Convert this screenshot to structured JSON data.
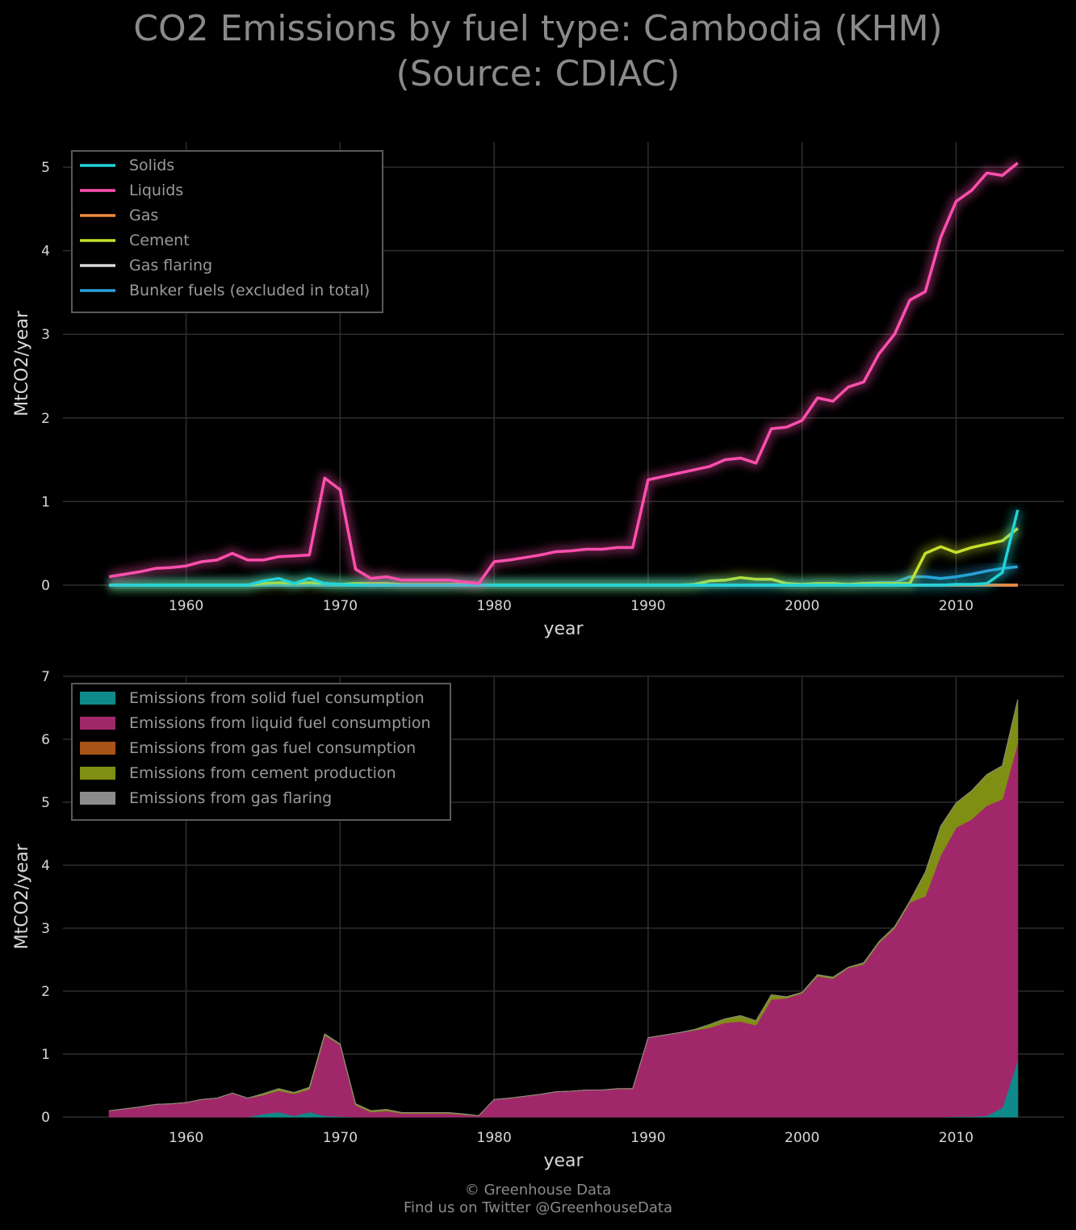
{
  "title": {
    "line1": "CO2 Emissions by fuel type: Cambodia (KHM)",
    "line2": "(Source: CDIAC)"
  },
  "footer": {
    "line1": "© Greenhouse Data",
    "line2": "Find us on Twitter @GreenhouseData"
  },
  "colors": {
    "background": "#000000",
    "solids": "#22d3d9",
    "liquids": "#ff4fae",
    "gas": "#f28a3c",
    "cement": "#c6e02a",
    "gas_flaring": "#d9d9d9",
    "bunker": "#2a9fd6",
    "area_solid": "#0f8a8a",
    "area_liquid": "#a0286a",
    "area_gas": "#a85418",
    "area_cement": "#7f8f14",
    "area_flaring": "#8c8c8c",
    "grid": "#2e2e2e"
  },
  "chart_data": [
    {
      "type": "line",
      "xlabel": "year",
      "ylabel": "MtCO2/year",
      "xlim": [
        1952,
        2017
      ],
      "ylim": [
        0,
        5.3
      ],
      "xticks": [
        1960,
        1970,
        1980,
        1990,
        2000,
        2010
      ],
      "yticks": [
        0,
        1,
        2,
        3,
        4,
        5
      ],
      "grid": true,
      "legend_position": "top-left",
      "x": [
        1955,
        1956,
        1957,
        1958,
        1959,
        1960,
        1961,
        1962,
        1963,
        1964,
        1965,
        1966,
        1967,
        1968,
        1969,
        1970,
        1971,
        1972,
        1973,
        1974,
        1975,
        1976,
        1977,
        1978,
        1979,
        1980,
        1981,
        1982,
        1983,
        1984,
        1985,
        1986,
        1987,
        1988,
        1989,
        1990,
        1991,
        1992,
        1993,
        1994,
        1995,
        1996,
        1997,
        1998,
        1999,
        2000,
        2001,
        2002,
        2003,
        2004,
        2005,
        2006,
        2007,
        2008,
        2009,
        2010,
        2011,
        2012,
        2013,
        2014
      ],
      "series": [
        {
          "name": "Solids",
          "key": "solids",
          "values": [
            0,
            0,
            0,
            0,
            0,
            0,
            0,
            0,
            0,
            0,
            0.05,
            0.08,
            0.02,
            0.08,
            0.02,
            0.01,
            0,
            0,
            0,
            0,
            0,
            0,
            0,
            0,
            0,
            0,
            0,
            0,
            0,
            0,
            0,
            0,
            0,
            0,
            0,
            0,
            0,
            0,
            0,
            0,
            0,
            0,
            0,
            0,
            0,
            0,
            0,
            0,
            0,
            0,
            0,
            0,
            0,
            0,
            0,
            0.01,
            0.01,
            0.02,
            0.15,
            0.9
          ]
        },
        {
          "name": "Liquids",
          "key": "liquids",
          "values": [
            0.1,
            0.13,
            0.16,
            0.2,
            0.21,
            0.23,
            0.28,
            0.3,
            0.38,
            0.3,
            0.3,
            0.34,
            0.35,
            0.36,
            1.28,
            1.14,
            0.19,
            0.08,
            0.1,
            0.06,
            0.06,
            0.06,
            0.06,
            0.04,
            0.02,
            0.28,
            0.3,
            0.33,
            0.36,
            0.4,
            0.41,
            0.43,
            0.43,
            0.45,
            0.45,
            1.26,
            1.3,
            1.34,
            1.38,
            1.42,
            1.5,
            1.52,
            1.46,
            1.87,
            1.89,
            1.97,
            2.24,
            2.2,
            2.37,
            2.43,
            2.77,
            3.0,
            3.41,
            3.51,
            4.16,
            4.59,
            4.72,
            4.93,
            4.9,
            5.05
          ]
        },
        {
          "name": "Gas",
          "key": "gas",
          "values": [
            0,
            0,
            0,
            0,
            0,
            0,
            0,
            0,
            0,
            0,
            0,
            0,
            0,
            0,
            0,
            0,
            0,
            0,
            0,
            0,
            0,
            0,
            0,
            0,
            0,
            0,
            0,
            0,
            0,
            0,
            0,
            0,
            0,
            0,
            0,
            0,
            0,
            0,
            0,
            0,
            0,
            0,
            0,
            0,
            0,
            0,
            0,
            0,
            0,
            0,
            0,
            0,
            0,
            0,
            0,
            0,
            0,
            0,
            0,
            0
          ]
        },
        {
          "name": "Cement",
          "key": "cement",
          "values": [
            0,
            0,
            0,
            0,
            0,
            0,
            0,
            0,
            0,
            0,
            0.02,
            0.03,
            0.02,
            0.03,
            0.02,
            0.01,
            0.02,
            0.02,
            0.02,
            0.01,
            0.01,
            0.01,
            0.01,
            0.01,
            0,
            0,
            0,
            0,
            0,
            0,
            0,
            0,
            0,
            0,
            0,
            0,
            0,
            0,
            0.01,
            0.05,
            0.06,
            0.09,
            0.07,
            0.07,
            0.02,
            0.01,
            0.02,
            0.02,
            0.01,
            0.02,
            0.02,
            0.02,
            0.02,
            0.38,
            0.46,
            0.39,
            0.45,
            0.49,
            0.53,
            0.68
          ]
        },
        {
          "name": "Gas flaring",
          "key": "gas_flaring",
          "values": [
            0,
            0,
            0,
            0,
            0,
            0,
            0,
            0,
            0,
            0,
            0,
            0,
            0,
            0,
            0,
            0,
            0,
            0,
            0,
            0,
            0,
            0,
            0,
            0,
            0,
            0,
            0,
            0,
            0,
            0,
            0,
            0,
            0,
            0,
            0,
            0,
            0,
            0,
            0,
            0,
            0,
            0,
            0,
            0,
            0,
            0,
            0,
            0,
            0,
            0,
            0,
            0,
            0,
            0,
            0,
            0,
            0,
            0,
            0,
            0
          ]
        },
        {
          "name": "Bunker fuels (excluded in total)",
          "key": "bunker",
          "values": [
            0,
            0,
            0,
            0,
            0,
            0,
            0,
            0,
            0,
            0,
            0,
            0,
            0,
            0,
            0,
            0,
            0,
            0,
            0,
            0,
            0,
            0,
            0,
            0,
            0,
            0,
            0,
            0,
            0,
            0,
            0,
            0,
            0,
            0,
            0,
            0,
            0,
            0,
            0,
            0,
            0,
            0,
            0,
            0,
            0,
            0,
            0.01,
            0.01,
            0.01,
            0.02,
            0.03,
            0.03,
            0.1,
            0.1,
            0.08,
            0.1,
            0.13,
            0.17,
            0.2,
            0.22
          ]
        }
      ]
    },
    {
      "type": "area",
      "stacked": true,
      "xlabel": "year",
      "ylabel": "MtCO2/year",
      "xlim": [
        1952,
        2017
      ],
      "ylim": [
        0,
        7
      ],
      "xticks": [
        1960,
        1970,
        1980,
        1990,
        2000,
        2010
      ],
      "yticks": [
        0,
        1,
        2,
        3,
        4,
        5,
        6,
        7
      ],
      "grid": true,
      "legend_position": "top-left",
      "series": [
        {
          "name": "Emissions from solid fuel consumption",
          "key": "area_solid",
          "source": "solids"
        },
        {
          "name": "Emissions from liquid fuel consumption",
          "key": "area_liquid",
          "source": "liquids"
        },
        {
          "name": "Emissions from gas fuel consumption",
          "key": "area_gas",
          "source": "gas"
        },
        {
          "name": "Emissions from cement production",
          "key": "area_cement",
          "source": "cement"
        },
        {
          "name": "Emissions from gas flaring",
          "key": "area_flaring",
          "source": "gas_flaring"
        }
      ]
    }
  ]
}
